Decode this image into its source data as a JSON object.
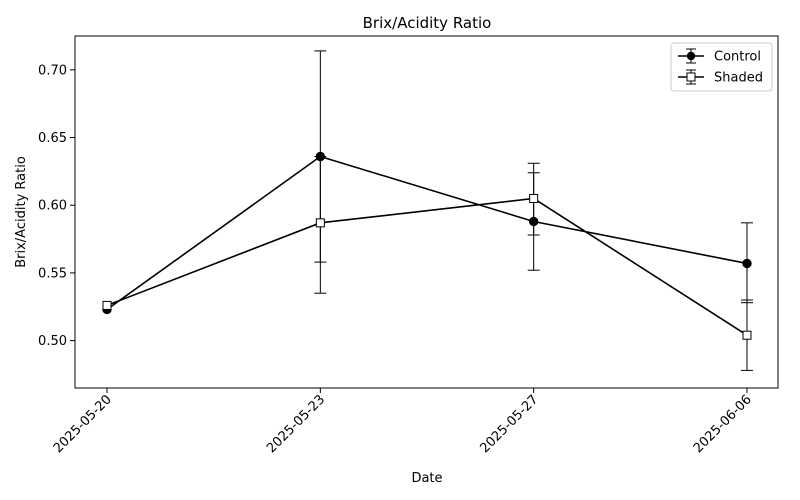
{
  "chart_data": {
    "type": "line",
    "title": "Brix/Acidity Ratio",
    "xlabel": "Date",
    "ylabel": "Brix/Acidity Ratio",
    "categories": [
      "2025-05-20",
      "2025-05-23",
      "2025-05-27",
      "2025-06-06"
    ],
    "ylim": [
      0.465,
      0.725
    ],
    "yticks": [
      0.5,
      0.55,
      0.6,
      0.65,
      0.7
    ],
    "ytick_labels": [
      "0.50",
      "0.55",
      "0.60",
      "0.65",
      "0.70"
    ],
    "grid": false,
    "legend": "top-right",
    "series": [
      {
        "name": "Control",
        "marker": "circle",
        "values": [
          0.523,
          0.636,
          0.588,
          0.557
        ],
        "err_low": [
          0.523,
          0.558,
          0.552,
          0.528
        ],
        "err_high": [
          0.523,
          0.714,
          0.624,
          0.587
        ],
        "color": "#000000"
      },
      {
        "name": "Shaded",
        "marker": "square",
        "values": [
          0.526,
          0.587,
          0.605,
          0.504
        ],
        "err_low": [
          0.526,
          0.535,
          0.578,
          0.478
        ],
        "err_high": [
          0.526,
          0.636,
          0.631,
          0.53
        ],
        "color": "#000000"
      }
    ]
  }
}
